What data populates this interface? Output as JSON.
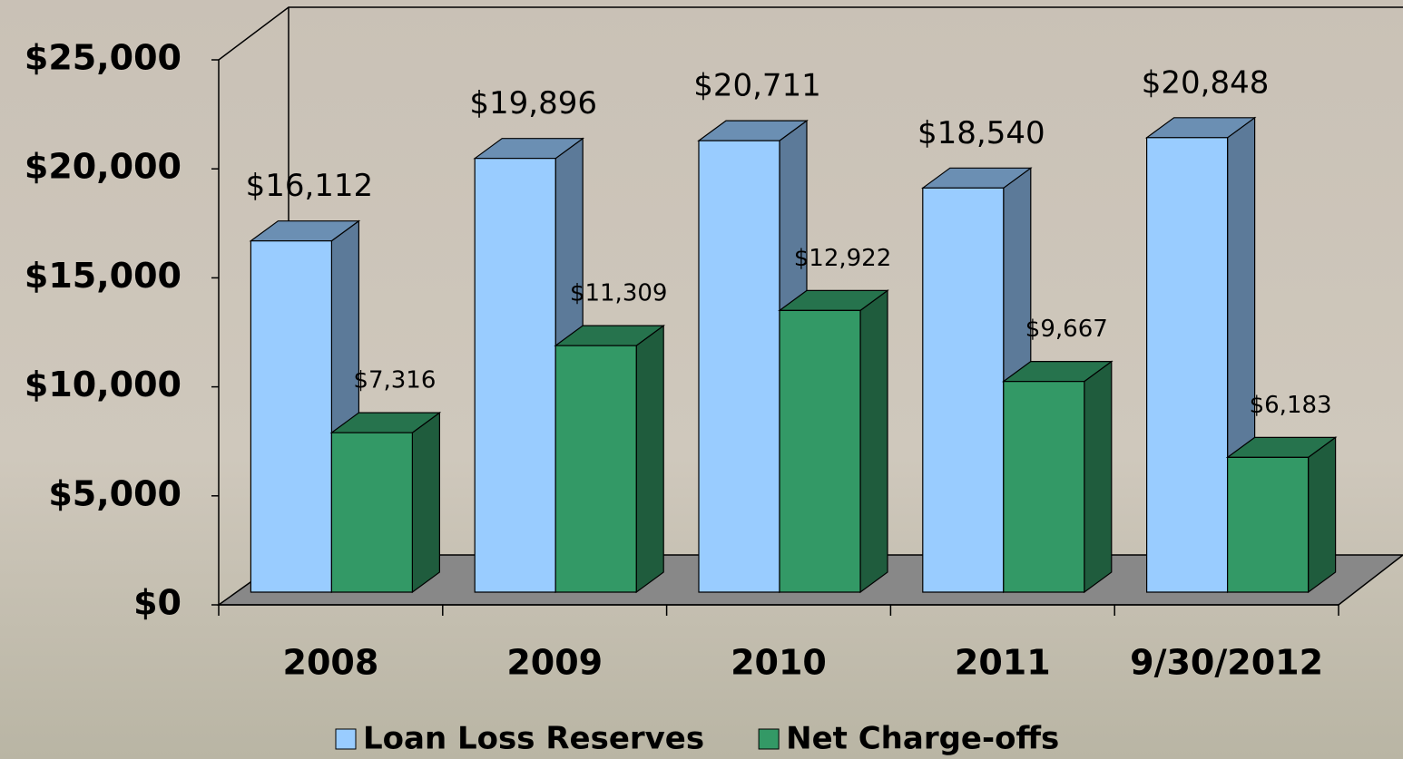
{
  "chart_data": {
    "type": "bar3d",
    "categories": [
      "2008",
      "2009",
      "2010",
      "2011",
      "9/30/2012"
    ],
    "series": [
      {
        "name": "Loan Loss Reserves",
        "color": "#99ccff",
        "values": [
          16112,
          19896,
          20711,
          18540,
          20848
        ],
        "value_labels": [
          "$16,112",
          "$19,896",
          "$20,711",
          "$18,540",
          "$20,848"
        ]
      },
      {
        "name": "Net Charge-offs",
        "color": "#339966",
        "values": [
          7316,
          11309,
          12922,
          9667,
          6183
        ],
        "value_labels": [
          "$7,316",
          "$11,309",
          "$12,922",
          "$9,667",
          "$6,183"
        ]
      }
    ],
    "ylim": [
      0,
      25000
    ],
    "yticks": [
      {
        "value": 0,
        "label": "$0"
      },
      {
        "value": 5000,
        "label": "$5,000"
      },
      {
        "value": 10000,
        "label": "$10,000"
      },
      {
        "value": 15000,
        "label": "$15,000"
      },
      {
        "value": 20000,
        "label": "$20,000"
      },
      {
        "value": 25000,
        "label": "$25,000"
      }
    ],
    "legend": "bottom"
  }
}
